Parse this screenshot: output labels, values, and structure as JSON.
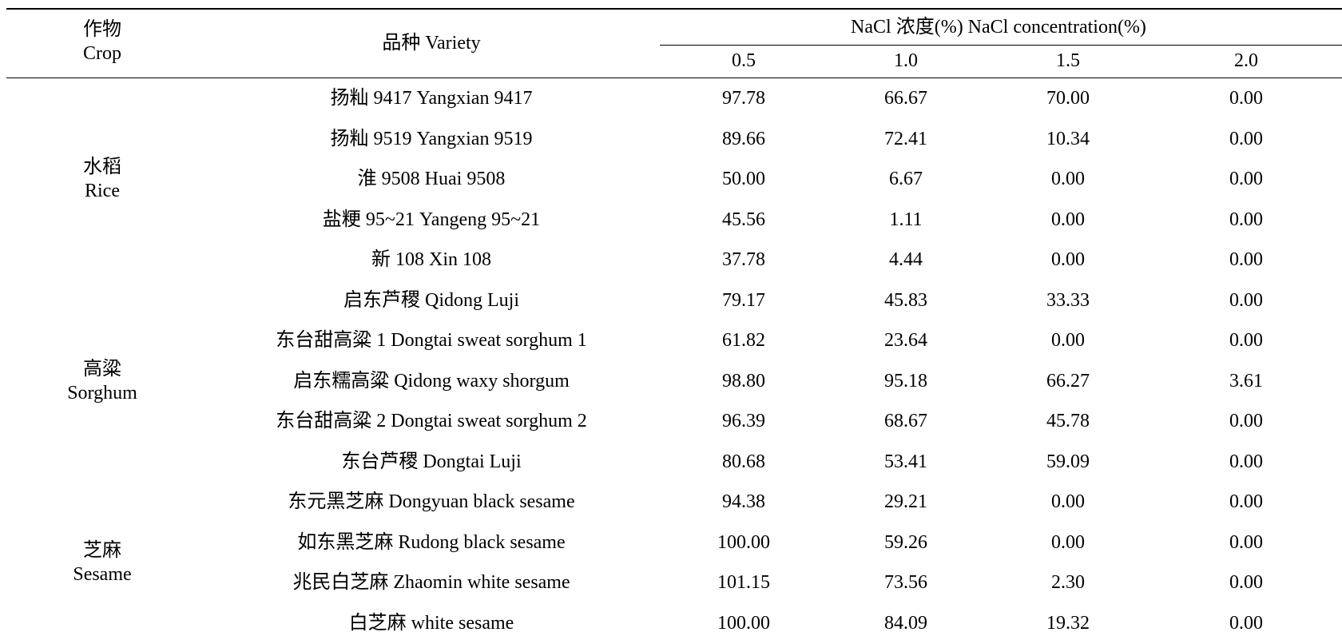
{
  "table": {
    "header": {
      "crop": {
        "zh": "作物",
        "en": "Crop"
      },
      "variety": "品种 Variety",
      "concentration": "NaCl 浓度(%) NaCl concentration(%)",
      "levels": [
        "0.5",
        "1.0",
        "1.5",
        "2.0"
      ]
    },
    "crops": [
      {
        "zh": "水稻",
        "en": "Rice",
        "first_row": 0,
        "rows": 5
      },
      {
        "zh": "高粱",
        "en": "Sorghum",
        "first_row": 5,
        "rows": 5
      },
      {
        "zh": "芝麻",
        "en": "Sesame",
        "first_row": 10,
        "rows": 4
      }
    ],
    "rows": [
      {
        "variety": "扬籼 9417 Yangxian 9417",
        "values": [
          "97.78",
          "66.67",
          "70.00",
          "0.00"
        ]
      },
      {
        "variety": "扬籼 9519 Yangxian 9519",
        "values": [
          "89.66",
          "72.41",
          "10.34",
          "0.00"
        ]
      },
      {
        "variety": "淮 9508 Huai 9508",
        "values": [
          "50.00",
          "6.67",
          "0.00",
          "0.00"
        ]
      },
      {
        "variety": "盐粳 95~21 Yangeng 95~21",
        "values": [
          "45.56",
          "1.11",
          "0.00",
          "0.00"
        ]
      },
      {
        "variety": "新 108 Xin 108",
        "values": [
          "37.78",
          "4.44",
          "0.00",
          "0.00"
        ]
      },
      {
        "variety": "启东芦稷  Qidong Luji",
        "values": [
          "79.17",
          "45.83",
          "33.33",
          "0.00"
        ]
      },
      {
        "variety": "东台甜高粱 1 Dongtai sweat sorghum 1",
        "values": [
          "61.82",
          "23.64",
          "0.00",
          "0.00"
        ]
      },
      {
        "variety": "启东糯高粱  Qidong waxy shorgum",
        "values": [
          "98.80",
          "95.18",
          "66.27",
          "3.61"
        ]
      },
      {
        "variety": "东台甜高粱 2 Dongtai sweat sorghum 2",
        "values": [
          "96.39",
          "68.67",
          "45.78",
          "0.00"
        ]
      },
      {
        "variety": "东台芦稷  Dongtai Luji",
        "values": [
          "80.68",
          "53.41",
          "59.09",
          "0.00"
        ]
      },
      {
        "variety": "东元黑芝麻  Dongyuan black sesame",
        "values": [
          "94.38",
          "29.21",
          "0.00",
          "0.00"
        ]
      },
      {
        "variety": "如东黑芝麻 Rudong black sesame",
        "values": [
          "100.00",
          "59.26",
          "0.00",
          "0.00"
        ]
      },
      {
        "variety": "兆民白芝麻 Zhaomin white sesame",
        "values": [
          "101.15",
          "73.56",
          "2.30",
          "0.00"
        ]
      },
      {
        "variety": "白芝麻 white sesame",
        "values": [
          "100.00",
          "84.09",
          "19.32",
          "0.00"
        ]
      }
    ]
  }
}
